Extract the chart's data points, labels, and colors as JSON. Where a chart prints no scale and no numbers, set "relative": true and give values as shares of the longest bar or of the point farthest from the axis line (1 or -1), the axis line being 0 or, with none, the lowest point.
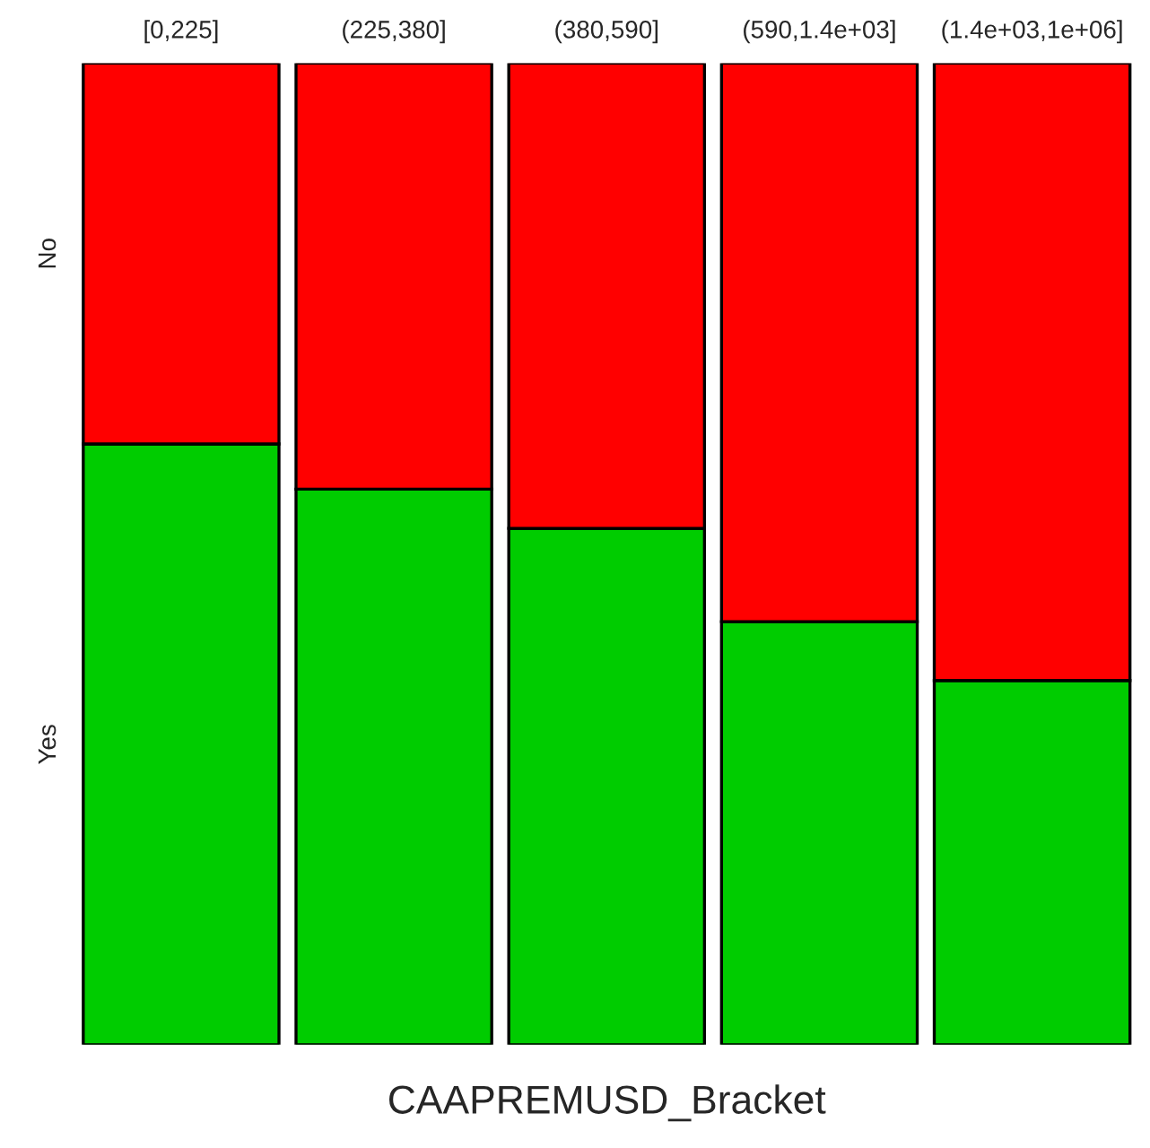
{
  "chart_data": {
    "type": "bar",
    "stacked": true,
    "relative": true,
    "xlabel": "CAAPREMUSD_Bracket",
    "categories": [
      "[0,225]",
      "(225,380]",
      "(380,590]",
      "(590,1.4e+03]",
      "(1.4e+03,1e+06]"
    ],
    "series": [
      {
        "name": "Yes",
        "color": "#00cc00",
        "values": [
          0.612,
          0.566,
          0.526,
          0.431,
          0.371
        ]
      },
      {
        "name": "No",
        "color": "#ff0000",
        "values": [
          0.388,
          0.434,
          0.474,
          0.569,
          0.629
        ]
      }
    ],
    "grid": false,
    "legend": false
  }
}
